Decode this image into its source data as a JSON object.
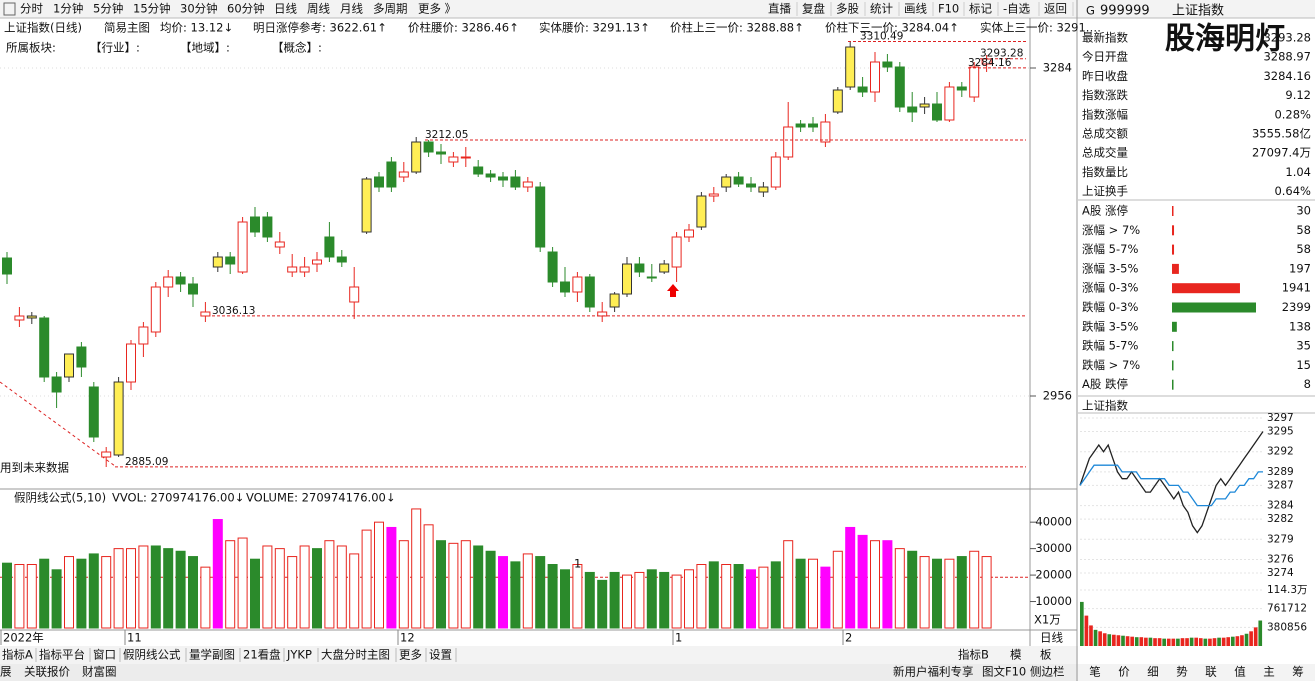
{
  "toolbar": {
    "left": [
      "分时",
      "1分钟",
      "5分钟",
      "15分钟",
      "30分钟",
      "60分钟",
      "日线",
      "周线",
      "月线",
      "多周期",
      "更多 》"
    ],
    "right": [
      "直播",
      "复盘",
      "多股",
      "统计",
      "画线",
      "F10",
      "标记",
      "-自选",
      "返回"
    ]
  },
  "info_bar": {
    "title": "上证指数(日线)",
    "main": "简易主图",
    "items": [
      "均价: 13.12↓",
      "明日涨停参考: 3622.61↑",
      "价柱腰价: 3286.46↑",
      "实体腰价: 3291.13↑",
      "价柱上三一价: 3288.88↑",
      "价柱下三一价: 3284.04↑",
      "实体上三一价: 3291.…"
    ]
  },
  "sector_bar": [
    "所属板块:",
    "【行业】:",
    "【地域】:",
    "【概念】:"
  ],
  "chart_data": {
    "type": "candlestick",
    "open": [
      3094,
      3032,
      3036,
      3034,
      2975,
      2975,
      3005,
      2965,
      2900,
      2897,
      2970,
      3008,
      3020,
      3065,
      3075,
      3068,
      3040,
      3085,
      3095,
      3080,
      3120,
      3135,
      3105,
      3085,
      3080,
      3088,
      3115,
      3095,
      3050,
      3120,
      3175,
      3190,
      3175,
      3180,
      3210,
      3200,
      3190,
      3195,
      3185,
      3178,
      3175,
      3175,
      3165,
      3165,
      3100,
      3070,
      3060,
      3075,
      3040,
      3045,
      3058,
      3088,
      3075,
      3080,
      3085,
      3115,
      3125,
      3156,
      3165,
      3175,
      3168,
      3160,
      3165,
      3195,
      3225,
      3228,
      3210,
      3240,
      3305,
      3265,
      3260,
      3290,
      3285,
      3245,
      3245,
      3248,
      3232,
      3265,
      3255,
      3288
    ],
    "high": [
      3100,
      3045,
      3040,
      3036,
      2980,
      2998,
      3010,
      2970,
      2905,
      2975,
      3012,
      3030,
      3070,
      3082,
      3080,
      3075,
      3050,
      3100,
      3100,
      3135,
      3145,
      3140,
      3120,
      3098,
      3095,
      3100,
      3130,
      3102,
      3085,
      3175,
      3180,
      3195,
      3190,
      3215,
      3212,
      3208,
      3200,
      3205,
      3192,
      3182,
      3180,
      3182,
      3175,
      3170,
      3105,
      3085,
      3080,
      3078,
      3050,
      3060,
      3095,
      3095,
      3088,
      3092,
      3120,
      3128,
      3160,
      3165,
      3178,
      3180,
      3175,
      3170,
      3200,
      3250,
      3232,
      3235,
      3238,
      3265,
      3310,
      3275,
      3300,
      3298,
      3290,
      3260,
      3255,
      3260,
      3270,
      3270,
      3290,
      3297
    ],
    "low": [
      3068,
      3025,
      3028,
      2970,
      2944,
      2970,
      2975,
      2910,
      2885,
      2895,
      2962,
      2995,
      3015,
      3055,
      3060,
      3045,
      3030,
      3080,
      3078,
      3078,
      3115,
      3110,
      3098,
      3075,
      3075,
      3080,
      3090,
      3085,
      3033,
      3118,
      3160,
      3160,
      3170,
      3178,
      3195,
      3188,
      3185,
      3185,
      3175,
      3170,
      3165,
      3162,
      3160,
      3100,
      3065,
      3055,
      3050,
      3040,
      3030,
      3040,
      3055,
      3075,
      3070,
      3078,
      3070,
      3110,
      3122,
      3150,
      3160,
      3165,
      3160,
      3155,
      3162,
      3192,
      3220,
      3220,
      3205,
      3238,
      3262,
      3255,
      3250,
      3280,
      3240,
      3230,
      3238,
      3230,
      3230,
      3255,
      3250,
      3280
    ],
    "close": [
      3078,
      3036,
      3034,
      2975,
      2960,
      2998,
      2985,
      2915,
      2895,
      2970,
      3008,
      3025,
      3065,
      3075,
      3068,
      3058,
      3036,
      3095,
      3088,
      3130,
      3135,
      3115,
      3110,
      3080,
      3085,
      3092,
      3095,
      3090,
      3065,
      3173,
      3165,
      3165,
      3180,
      3210,
      3200,
      3198,
      3195,
      3195,
      3178,
      3175,
      3172,
      3165,
      3170,
      3105,
      3070,
      3060,
      3075,
      3045,
      3036,
      3058,
      3088,
      3080,
      3075,
      3088,
      3115,
      3122,
      3156,
      3158,
      3175,
      3168,
      3165,
      3165,
      3195,
      3225,
      3228,
      3225,
      3230,
      3262,
      3265,
      3260,
      3290,
      3285,
      3245,
      3240,
      3248,
      3232,
      3265,
      3262,
      3285,
      3293
    ],
    "color": [
      "green",
      "red",
      "yellow",
      "green",
      "green",
      "yellow",
      "green",
      "green",
      "red",
      "yellow",
      "red",
      "red",
      "red",
      "red",
      "green",
      "green",
      "red",
      "yellow",
      "green",
      "red",
      "green",
      "green",
      "red",
      "red",
      "red",
      "red",
      "green",
      "green",
      "red",
      "yellow",
      "green",
      "green",
      "red",
      "yellow",
      "green",
      "green",
      "red",
      "red",
      "green",
      "green",
      "green",
      "green",
      "red",
      "green",
      "green",
      "green",
      "red",
      "green",
      "red",
      "yellow",
      "yellow",
      "green",
      "green",
      "yellow",
      "red",
      "red",
      "yellow",
      "red",
      "yellow",
      "green",
      "green",
      "yellow",
      "red",
      "red",
      "green",
      "green",
      "red",
      "yellow",
      "yellow",
      "green",
      "red",
      "green",
      "green",
      "green",
      "yellow",
      "green",
      "red",
      "green",
      "red",
      "red"
    ],
    "ylim": [
      2864,
      3312
    ],
    "yticks": [
      3284,
      2956
    ],
    "annotations": [
      {
        "value": 3310.49,
        "label": "3310.49"
      },
      {
        "value": 3293.28,
        "label": "3293.28"
      },
      {
        "value": 3284.16,
        "label": "3284.16"
      },
      {
        "value": 3212.05,
        "label": "3212.05"
      },
      {
        "value": 3036.13,
        "label": "3036.13"
      },
      {
        "value": 2885.09,
        "label": "2885.09"
      }
    ],
    "note": "用到未来数据",
    "dates": [
      "2022年",
      "11",
      "12",
      "1",
      "2"
    ],
    "period": "日线"
  },
  "volume_chart": {
    "type": "bar",
    "title": "假阴线公式(5,10)",
    "legend": [
      "VVOL: 270974176.00↓",
      "VOLUME: 270974176.00↓"
    ],
    "values": [
      24500,
      24000,
      24000,
      26000,
      22000,
      27000,
      26000,
      28000,
      27000,
      30000,
      30000,
      31000,
      31000,
      30000,
      29000,
      27000,
      23000,
      41000,
      33000,
      34000,
      26000,
      31000,
      30000,
      27000,
      31000,
      30000,
      33000,
      31000,
      28000,
      37000,
      40000,
      38000,
      33000,
      45000,
      39000,
      33000,
      32000,
      33000,
      31000,
      29000,
      27000,
      25000,
      28000,
      27000,
      24000,
      22000,
      24000,
      21000,
      18000,
      21000,
      20000,
      21000,
      22000,
      21000,
      20000,
      22000,
      24000,
      25000,
      24000,
      24000,
      22000,
      23000,
      25000,
      33000,
      26000,
      26000,
      23000,
      29000,
      38000,
      35000,
      33000,
      33000,
      30000,
      29000,
      27000,
      26000,
      26000,
      27000,
      29000,
      27000
    ],
    "color": [
      "green",
      "red",
      "red",
      "green",
      "green",
      "red",
      "green",
      "green",
      "red",
      "red",
      "red",
      "red",
      "green",
      "green",
      "green",
      "green",
      "red",
      "magenta",
      "red",
      "red",
      "green",
      "red",
      "red",
      "red",
      "red",
      "green",
      "red",
      "red",
      "red",
      "red",
      "red",
      "magenta",
      "red",
      "red",
      "red",
      "green",
      "red",
      "red",
      "green",
      "green",
      "magenta",
      "green",
      "red",
      "green",
      "green",
      "green",
      "red",
      "green",
      "green",
      "green",
      "red",
      "red",
      "green",
      "green",
      "red",
      "red",
      "red",
      "green",
      "red",
      "green",
      "magenta",
      "red",
      "green",
      "red",
      "green",
      "red",
      "magenta",
      "red",
      "magenta",
      "magenta",
      "red",
      "magenta",
      "red",
      "green",
      "red",
      "green",
      "red",
      "green",
      "red",
      "red"
    ],
    "ylim": [
      0,
      48000
    ],
    "yticks": [
      10000,
      20000,
      30000,
      40000
    ],
    "unit": "X1万",
    "marker": "1"
  },
  "quote": {
    "g": "G",
    "symbol": "999999",
    "name": "上证指数",
    "brand": "股海明灯",
    "rows": [
      {
        "label": "最新指数",
        "value": 3293.28,
        "color": "red"
      },
      {
        "label": "今日开盘",
        "value": 3288.97,
        "color": "red"
      },
      {
        "label": "昨日收盘",
        "value": 3284.16,
        "color": "black"
      },
      {
        "label": "指数涨跌",
        "value": 9.12,
        "color": "red"
      },
      {
        "label": "指数涨幅",
        "value": "0.28%",
        "color": "red"
      },
      {
        "label": "总成交额",
        "value": "3555.58亿",
        "color": "black"
      },
      {
        "label": "总成交量",
        "value": "27097.4万",
        "color": "black"
      },
      {
        "label": "指数量比",
        "value": 1.04,
        "color": "red"
      },
      {
        "label": "上证换手",
        "value": "0.64%",
        "color": "black"
      }
    ]
  },
  "breadth": [
    {
      "label": "A股 涨停",
      "value": 30,
      "color": "red"
    },
    {
      "label": "涨幅 > 7%",
      "value": 58,
      "color": "red"
    },
    {
      "label": "涨幅 5-7%",
      "value": 58,
      "color": "red"
    },
    {
      "label": "涨幅 3-5%",
      "value": 197,
      "color": "red"
    },
    {
      "label": "涨幅 0-3%",
      "value": 1941,
      "color": "red"
    },
    {
      "label": "跌幅 0-3%",
      "value": 2399,
      "color": "green"
    },
    {
      "label": "跌幅 3-5%",
      "value": 138,
      "color": "green"
    },
    {
      "label": "跌幅 5-7%",
      "value": 35,
      "color": "green"
    },
    {
      "label": "跌幅 > 7%",
      "value": 15,
      "color": "green"
    },
    {
      "label": "A股 跌停",
      "value": 8,
      "color": "green"
    }
  ],
  "mini_chart": {
    "type": "line",
    "title": "上证指数",
    "series": [
      {
        "color": "#222222",
        "values": [
          3287,
          3289,
          3291,
          3292,
          3293,
          3292,
          3293,
          3291,
          3289,
          3288,
          3288,
          3289,
          3288,
          3287,
          3286,
          3286,
          3287,
          3288,
          3287,
          3286,
          3285,
          3286,
          3284,
          3283,
          3281,
          3280,
          3281,
          3283,
          3285,
          3287,
          3288,
          3287,
          3288,
          3289,
          3290,
          3291,
          3292,
          3293,
          3294,
          3295
        ]
      },
      {
        "color": "#1e88d8",
        "values": [
          3287,
          3288,
          3289,
          3290,
          3290,
          3290,
          3290,
          3290,
          3290,
          3289,
          3289,
          3289,
          3289,
          3288,
          3288,
          3288,
          3288,
          3288,
          3288,
          3287,
          3287,
          3287,
          3286,
          3286,
          3285,
          3284,
          3284,
          3284,
          3284,
          3285,
          3285,
          3285,
          3286,
          3286,
          3287,
          3287,
          3288,
          3288,
          3289,
          3289
        ]
      }
    ],
    "ylim": [
      3274,
      3297
    ],
    "yticks": [
      3297,
      3295,
      3292,
      3289,
      3287,
      3284,
      3282,
      3279,
      3276,
      3274
    ],
    "volume": {
      "values": [
        900000,
        620000,
        420000,
        330000,
        300000,
        260000,
        240000,
        230000,
        220000,
        210000,
        200000,
        190000,
        180000,
        180000,
        170000,
        170000,
        160000,
        160000,
        150000,
        150000,
        150000,
        150000,
        160000,
        160000,
        170000,
        170000,
        160000,
        150000,
        150000,
        160000,
        170000,
        170000,
        180000,
        190000,
        200000,
        220000,
        250000,
        300000,
        380000,
        520000
      ],
      "ylim": [
        0,
        1143000
      ],
      "yticks": [
        380856,
        761712,
        {
          "value": 1143000,
          "label": "114.3万"
        }
      ]
    }
  },
  "bottom_tabs": {
    "left": [
      "指标A",
      "指标平台",
      "窗口",
      "假阴线公式",
      "量学副图",
      "21看盘",
      "JYKP",
      "大盘分时主图",
      "更多",
      "设置"
    ],
    "right": [
      "指标B",
      "模",
      "板"
    ]
  },
  "status_bar": {
    "left": [
      "展",
      "关联报价",
      "财富圈"
    ],
    "right": [
      "新用户福利专享",
      "图文F10",
      "侧边栏"
    ]
  },
  "side_tabs": [
    "笔",
    "价",
    "细",
    "势",
    "联",
    "值",
    "主",
    "筹"
  ]
}
